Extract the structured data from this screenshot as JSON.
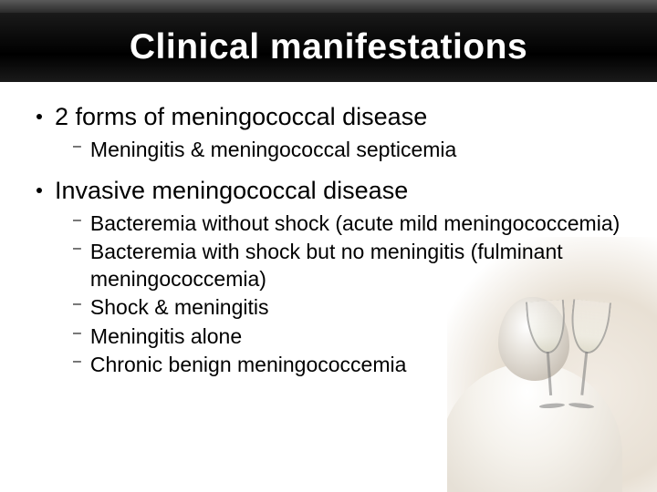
{
  "title": "Clinical manifestations",
  "title_fontsize": 39,
  "colors": {
    "title_text": "#ffffff",
    "body_text": "#000000",
    "header_gradient_top": "#5a5a5a",
    "header_gradient_bottom": "#000000",
    "background": "#ffffff"
  },
  "typography": {
    "top_bullet_fontsize": 27,
    "sub_bullet_fontsize": 23,
    "font_family": "Arial"
  },
  "bullets": [
    {
      "text": "2 forms of meningococcal disease",
      "sub": [
        "Meningitis & meningococcal septicemia"
      ]
    },
    {
      "text": "Invasive meningococcal disease",
      "sub": [
        "Bacteremia without shock (acute mild meningococcemia)",
        "Bacteremia with shock but no meningitis (fulminant meningococcemia)",
        "Shock & meningitis",
        "Meningitis alone",
        "Chronic benign meningococcemia"
      ]
    }
  ]
}
